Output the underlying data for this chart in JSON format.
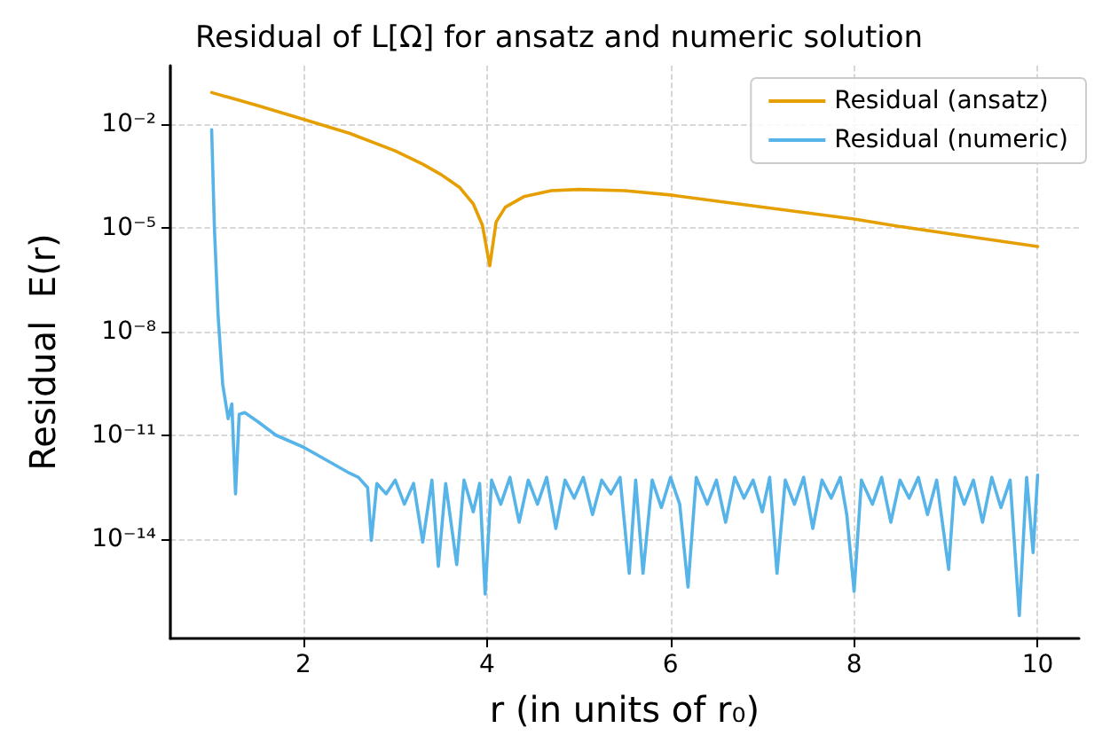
{
  "chart_data": {
    "type": "line",
    "title": "Residual of L[Ω] for ansatz and numeric solution",
    "xlabel": "r (in units of r₀)",
    "ylabel": "Residual  E(r)",
    "log": "y",
    "grid": true,
    "legend": "top right",
    "marker": "none",
    "line_style": "solid",
    "xlim": [
      0.55,
      10.45
    ],
    "xticks": [
      2,
      4,
      6,
      8,
      10
    ],
    "ylim": [
      1.3e-17,
      0.5
    ],
    "yticks": [
      {
        "value": 0.01,
        "label": "10⁻²"
      },
      {
        "value": 1e-05,
        "label": "10⁻⁵"
      },
      {
        "value": 1e-08,
        "label": "10⁻⁸"
      },
      {
        "value": 1e-11,
        "label": "10⁻¹¹"
      },
      {
        "value": 1e-14,
        "label": "10⁻¹⁴"
      }
    ],
    "series": [
      {
        "name": "Residual (ansatz)",
        "color": "#e69f00",
        "x": [
          1,
          1.5,
          2,
          2.5,
          3,
          3.3,
          3.5,
          3.7,
          3.85,
          3.95,
          4.03,
          4.1,
          4.2,
          4.4,
          4.7,
          5.0,
          5.5,
          6.0,
          6.5,
          7,
          7.5,
          8,
          8.5,
          9,
          9.5,
          10
        ],
        "values": [
          0.083,
          0.035,
          0.014,
          0.0055,
          0.0017,
          0.0007,
          0.00035,
          0.00015,
          5e-05,
          1.2e-05,
          8e-07,
          1.5e-05,
          4e-05,
          8e-05,
          0.00012,
          0.00013,
          0.00012,
          9e-05,
          6e-05,
          4e-05,
          2.7e-05,
          1.8e-05,
          1.1e-05,
          7e-06,
          4.5e-06,
          2.9e-06
        ]
      },
      {
        "name": "Residual (numeric)",
        "color": "#56b4e9",
        "x": [
          1,
          1.03,
          1.07,
          1.12,
          1.18,
          1.22,
          1.26,
          1.3,
          1.36,
          1.5,
          1.7,
          2.0,
          2.3,
          2.5,
          2.6,
          2.7,
          2.74,
          2.8,
          2.9,
          3.0,
          3.1,
          3.2,
          3.3,
          3.4,
          3.47,
          3.55,
          3.67,
          3.75,
          3.85,
          3.92,
          3.98,
          4.05,
          4.15,
          4.25,
          4.35,
          4.45,
          4.55,
          4.65,
          4.75,
          4.85,
          4.95,
          5.05,
          5.15,
          5.25,
          5.35,
          5.45,
          5.55,
          5.62,
          5.7,
          5.8,
          5.9,
          6.0,
          6.1,
          6.19,
          6.28,
          6.4,
          6.5,
          6.6,
          6.7,
          6.8,
          6.9,
          7.0,
          7.08,
          7.16,
          7.25,
          7.35,
          7.45,
          7.55,
          7.65,
          7.75,
          7.85,
          7.92,
          8.0,
          8.08,
          8.2,
          8.3,
          8.4,
          8.5,
          8.6,
          8.7,
          8.8,
          8.9,
          9.03,
          9.1,
          9.2,
          9.3,
          9.4,
          9.5,
          9.6,
          9.7,
          9.8,
          9.88,
          9.95,
          10.0
        ],
        "values": [
          0.007,
          1e-05,
          3e-08,
          3e-10,
          3e-11,
          8e-11,
          2e-13,
          4e-11,
          4.5e-11,
          2.5e-11,
          1e-11,
          4.5e-12,
          1.6e-12,
          8e-13,
          6e-13,
          3e-13,
          9e-15,
          4e-13,
          2e-13,
          5e-13,
          1e-13,
          4e-13,
          8e-15,
          5e-13,
          1.6e-15,
          4e-13,
          1.8e-15,
          5e-13,
          6e-14,
          4e-13,
          2.5e-16,
          5e-13,
          1e-13,
          6e-13,
          3e-14,
          5e-13,
          1e-13,
          6e-13,
          2e-14,
          5e-13,
          1.5e-13,
          6e-13,
          5e-14,
          5e-13,
          2e-13,
          6e-13,
          1e-15,
          5e-13,
          1e-15,
          5e-13,
          8e-14,
          6e-13,
          1e-13,
          4e-16,
          6e-13,
          1e-13,
          5e-13,
          3e-14,
          6e-13,
          1.5e-13,
          5e-13,
          6e-14,
          6e-13,
          1e-15,
          5e-13,
          1e-13,
          6e-13,
          2e-14,
          5e-13,
          1.5e-13,
          6e-13,
          5e-14,
          3e-16,
          5e-13,
          1e-13,
          6e-13,
          3e-14,
          5e-13,
          1.5e-13,
          6e-13,
          5e-14,
          5e-13,
          1.3e-15,
          6e-13,
          1e-13,
          5e-13,
          3e-14,
          6e-13,
          8e-14,
          5e-13,
          6e-17,
          6e-13,
          4e-15,
          7e-13
        ]
      }
    ]
  }
}
